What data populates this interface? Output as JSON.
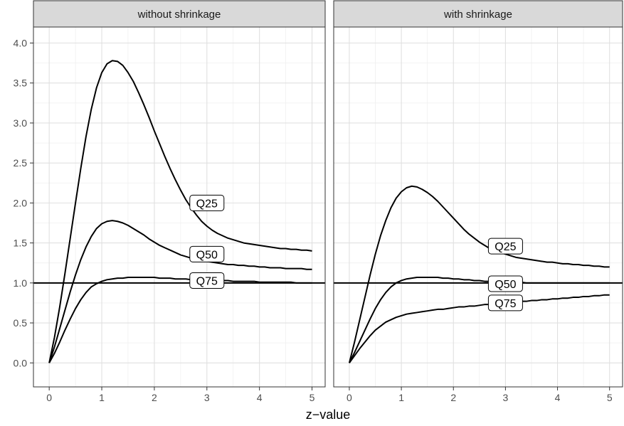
{
  "chart_data": {
    "type": "line",
    "xlabel": "z−value",
    "ylabel": "",
    "xlim": [
      0,
      5
    ],
    "ylim": [
      0,
      4
    ],
    "x_ticks": [
      "0",
      "1",
      "2",
      "3",
      "4",
      "5"
    ],
    "y_ticks": [
      "0.0",
      "0.5",
      "1.0",
      "1.5",
      "2.0",
      "2.5",
      "3.0",
      "3.5",
      "4.0"
    ],
    "grid": true,
    "reference_line": 1.0,
    "x": [
      0,
      0.1,
      0.2,
      0.3,
      0.4,
      0.5,
      0.6,
      0.7,
      0.8,
      0.9,
      1.0,
      1.1,
      1.2,
      1.3,
      1.4,
      1.5,
      1.6,
      1.7,
      1.8,
      1.9,
      2.0,
      2.1,
      2.2,
      2.3,
      2.4,
      2.5,
      2.6,
      2.7,
      2.8,
      2.9,
      3.0,
      3.1,
      3.2,
      3.3,
      3.4,
      3.5,
      3.6,
      3.7,
      3.8,
      3.9,
      4.0,
      4.1,
      4.2,
      4.3,
      4.4,
      4.5,
      4.6,
      4.7,
      4.8,
      4.9,
      5.0
    ],
    "panels": [
      {
        "title": "without shrinkage",
        "series": [
          {
            "name": "Q25",
            "label_at": [
              3.0,
              2.0
            ],
            "values": [
              0.0,
              0.32,
              0.7,
              1.12,
              1.56,
              2.0,
              2.43,
              2.83,
              3.17,
              3.44,
              3.63,
              3.74,
              3.78,
              3.77,
              3.72,
              3.63,
              3.52,
              3.38,
              3.23,
              3.07,
              2.9,
              2.74,
              2.58,
              2.43,
              2.29,
              2.16,
              2.04,
              1.94,
              1.85,
              1.77,
              1.71,
              1.66,
              1.62,
              1.59,
              1.56,
              1.54,
              1.52,
              1.5,
              1.49,
              1.48,
              1.47,
              1.46,
              1.45,
              1.44,
              1.43,
              1.43,
              1.42,
              1.42,
              1.41,
              1.41,
              1.4
            ]
          },
          {
            "name": "Q50",
            "label_at": [
              3.0,
              1.36
            ],
            "values": [
              0.0,
              0.2,
              0.43,
              0.66,
              0.89,
              1.1,
              1.29,
              1.45,
              1.58,
              1.68,
              1.74,
              1.77,
              1.78,
              1.77,
              1.75,
              1.72,
              1.68,
              1.64,
              1.6,
              1.55,
              1.51,
              1.47,
              1.44,
              1.41,
              1.38,
              1.35,
              1.33,
              1.31,
              1.29,
              1.28,
              1.27,
              1.26,
              1.25,
              1.24,
              1.23,
              1.23,
              1.22,
              1.22,
              1.21,
              1.21,
              1.2,
              1.2,
              1.19,
              1.19,
              1.19,
              1.18,
              1.18,
              1.18,
              1.18,
              1.17,
              1.17
            ]
          },
          {
            "name": "Q75",
            "label_at": [
              3.0,
              1.03
            ],
            "values": [
              0.0,
              0.12,
              0.26,
              0.41,
              0.55,
              0.68,
              0.79,
              0.88,
              0.95,
              0.99,
              1.02,
              1.04,
              1.05,
              1.06,
              1.06,
              1.07,
              1.07,
              1.07,
              1.07,
              1.07,
              1.07,
              1.06,
              1.06,
              1.06,
              1.05,
              1.05,
              1.05,
              1.04,
              1.04,
              1.04,
              1.04,
              1.03,
              1.03,
              1.03,
              1.03,
              1.02,
              1.02,
              1.02,
              1.02,
              1.02,
              1.01,
              1.01,
              1.01,
              1.01,
              1.01,
              1.01,
              1.01,
              1.0,
              1.0,
              1.0,
              1.0
            ]
          }
        ]
      },
      {
        "title": "with shrinkage",
        "series": [
          {
            "name": "Q25",
            "label_at": [
              3.0,
              1.46
            ],
            "values": [
              0.0,
              0.26,
              0.54,
              0.82,
              1.1,
              1.36,
              1.59,
              1.78,
              1.94,
              2.06,
              2.14,
              2.19,
              2.21,
              2.2,
              2.17,
              2.13,
              2.08,
              2.02,
              1.95,
              1.88,
              1.81,
              1.74,
              1.67,
              1.61,
              1.56,
              1.51,
              1.47,
              1.43,
              1.4,
              1.38,
              1.36,
              1.34,
              1.32,
              1.31,
              1.3,
              1.29,
              1.28,
              1.27,
              1.26,
              1.26,
              1.25,
              1.24,
              1.24,
              1.23,
              1.23,
              1.22,
              1.22,
              1.21,
              1.21,
              1.2,
              1.2
            ]
          },
          {
            "name": "Q50",
            "label_at": [
              3.0,
              0.99
            ],
            "values": [
              0.0,
              0.13,
              0.27,
              0.41,
              0.55,
              0.68,
              0.79,
              0.88,
              0.95,
              1.0,
              1.03,
              1.05,
              1.06,
              1.07,
              1.07,
              1.07,
              1.07,
              1.07,
              1.06,
              1.06,
              1.05,
              1.05,
              1.04,
              1.04,
              1.03,
              1.03,
              1.02,
              1.02,
              1.02,
              1.01,
              1.01,
              1.01,
              1.01,
              1.01,
              1.0,
              1.0,
              1.0,
              1.0,
              1.0,
              1.0,
              1.0,
              1.0,
              1.0,
              1.0,
              1.0,
              1.0,
              1.0,
              1.0,
              1.0,
              1.0,
              1.0
            ]
          },
          {
            "name": "Q75",
            "label_at": [
              3.0,
              0.75
            ],
            "values": [
              0.0,
              0.09,
              0.18,
              0.26,
              0.34,
              0.41,
              0.46,
              0.51,
              0.54,
              0.57,
              0.59,
              0.61,
              0.62,
              0.63,
              0.64,
              0.65,
              0.66,
              0.67,
              0.67,
              0.68,
              0.69,
              0.7,
              0.7,
              0.71,
              0.71,
              0.72,
              0.73,
              0.73,
              0.74,
              0.74,
              0.75,
              0.75,
              0.76,
              0.77,
              0.77,
              0.78,
              0.78,
              0.79,
              0.79,
              0.8,
              0.8,
              0.81,
              0.81,
              0.82,
              0.82,
              0.83,
              0.83,
              0.84,
              0.84,
              0.85,
              0.85
            ]
          }
        ]
      }
    ]
  }
}
